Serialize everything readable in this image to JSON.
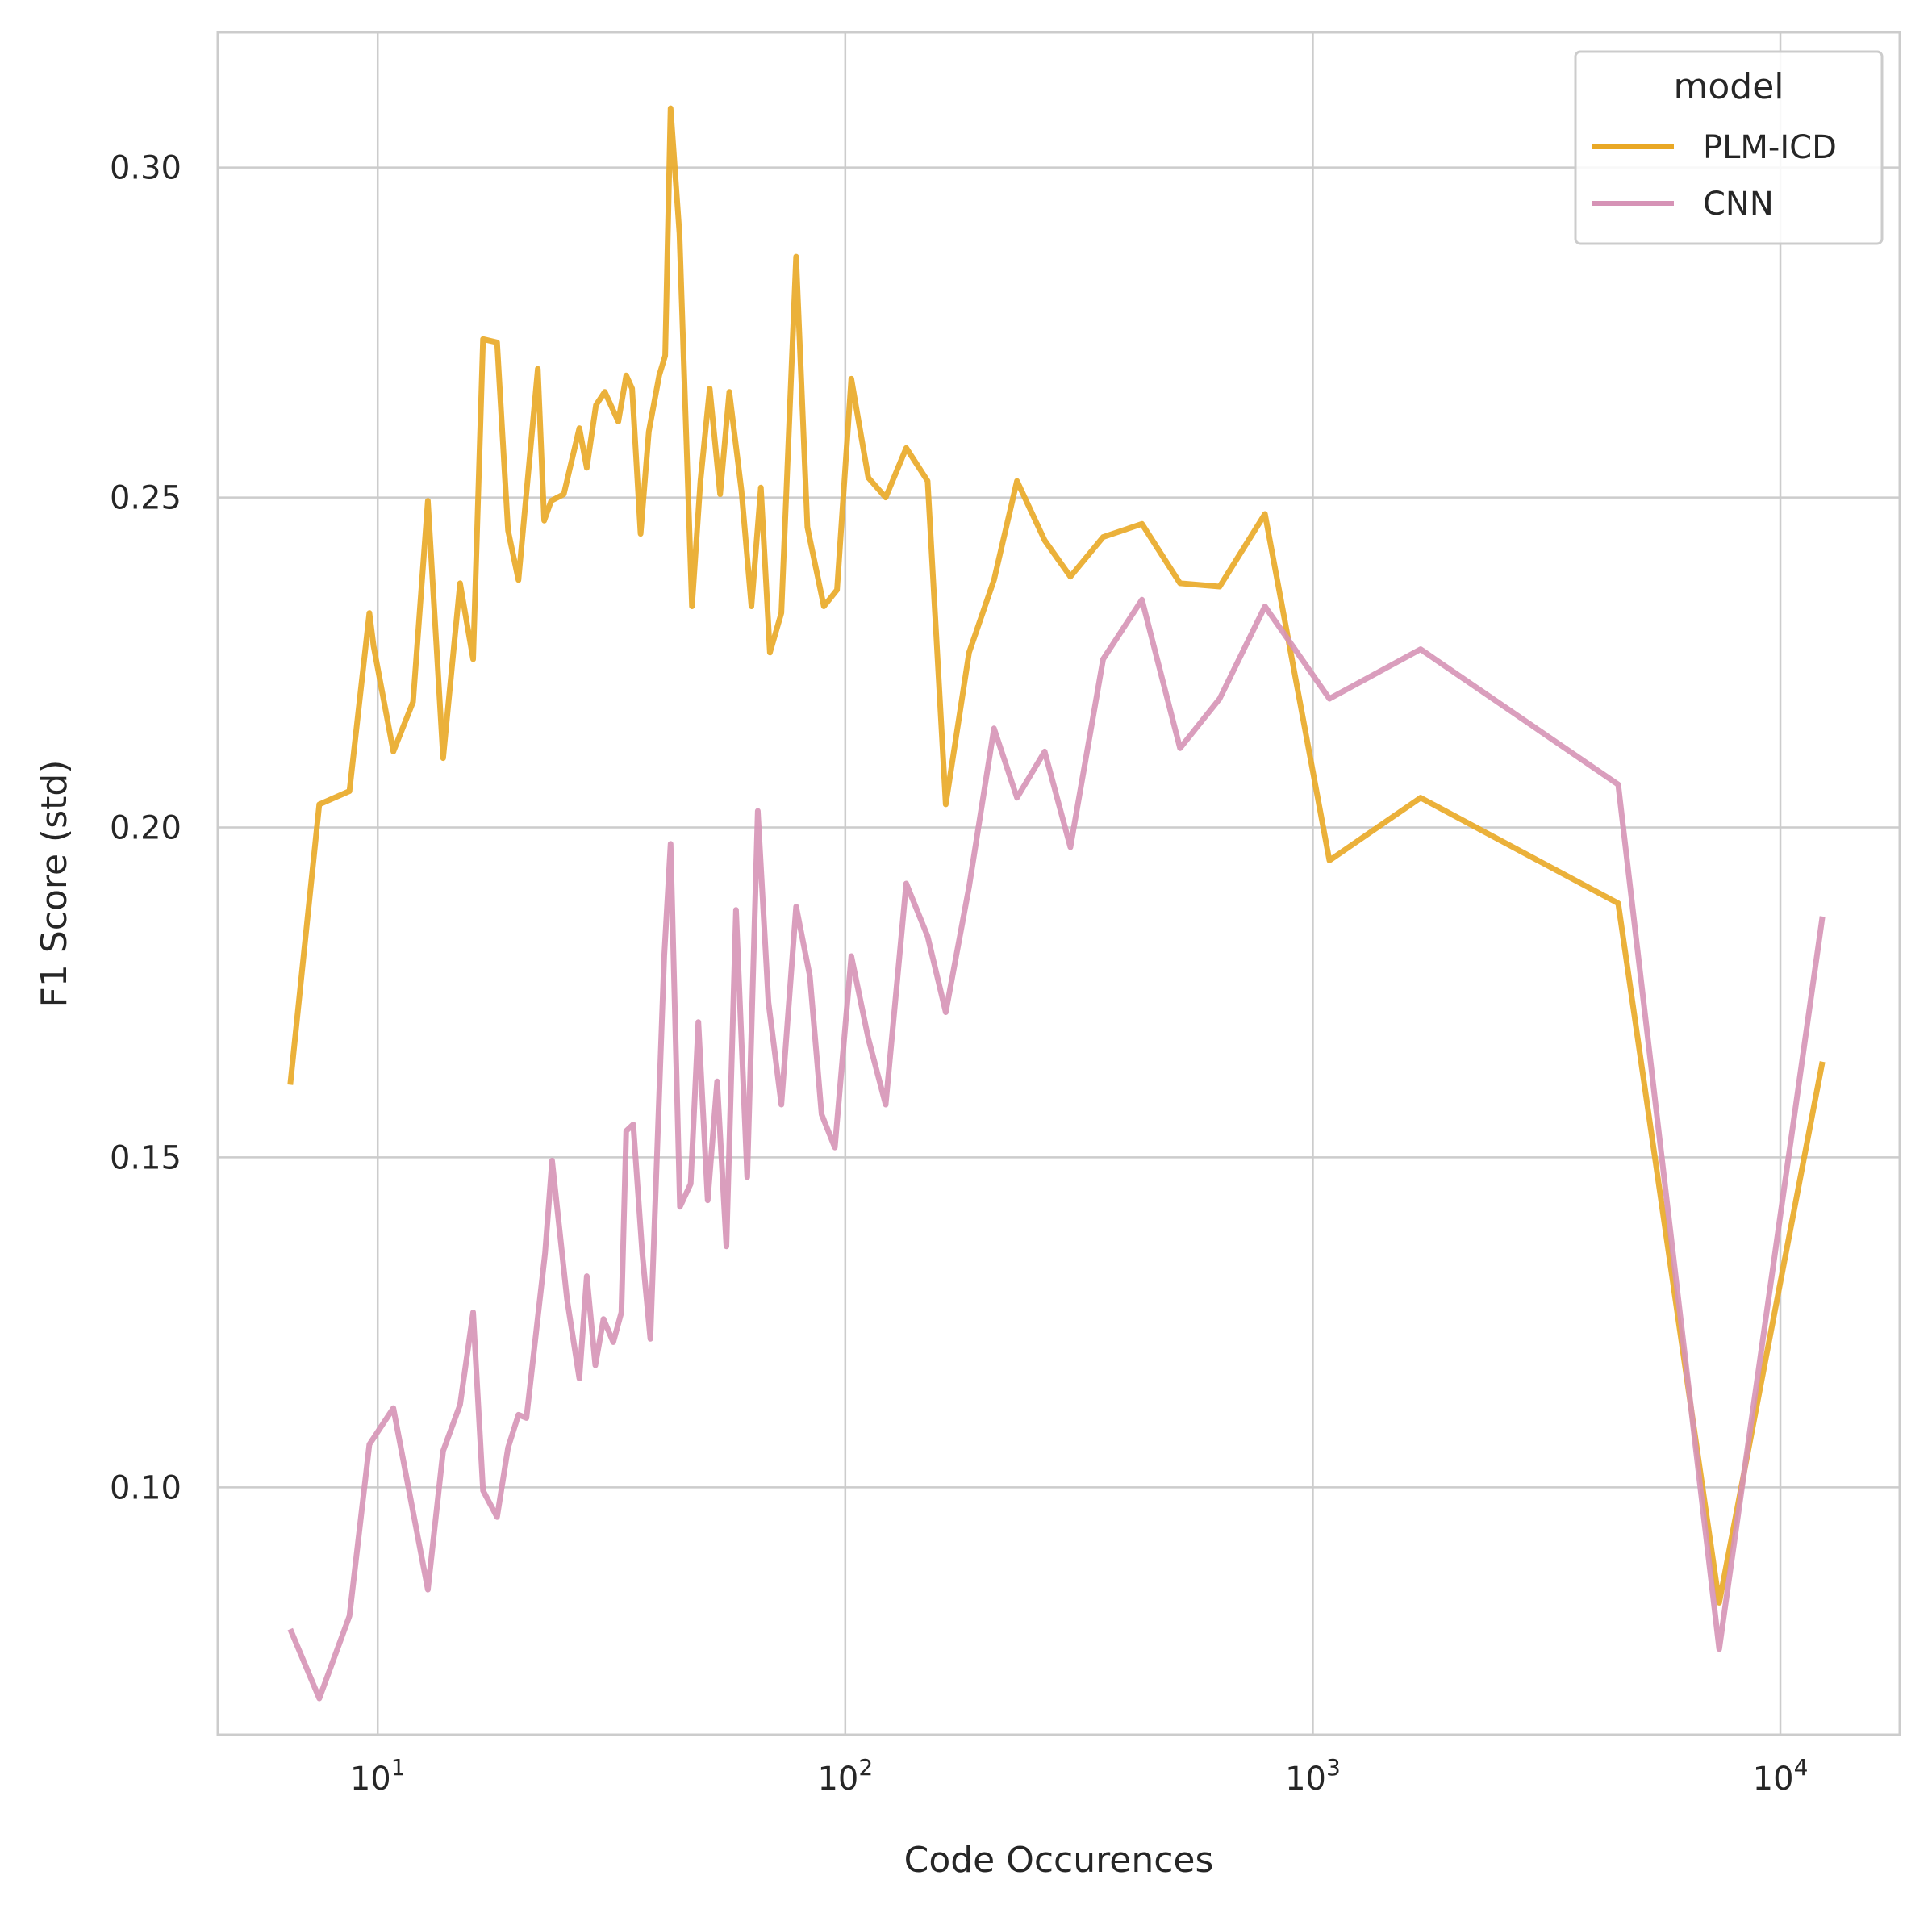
{
  "chart_data": {
    "type": "line",
    "xlabel": "Code Occurences",
    "ylabel": "F1 Score (std)",
    "xscale": "log",
    "xlim": [
      4.55,
      18000
    ],
    "ylim": [
      0.0625,
      0.3205
    ],
    "grid": true,
    "x_ticks": [
      {
        "value": 10,
        "base": "10",
        "exp": "1"
      },
      {
        "value": 100,
        "base": "10",
        "exp": "2"
      },
      {
        "value": 1000,
        "base": "10",
        "exp": "3"
      },
      {
        "value": 10000,
        "base": "10",
        "exp": "4"
      }
    ],
    "y_ticks": [
      {
        "value": 0.1,
        "label": "0.10"
      },
      {
        "value": 0.15,
        "label": "0.15"
      },
      {
        "value": 0.2,
        "label": "0.20"
      },
      {
        "value": 0.25,
        "label": "0.25"
      },
      {
        "value": 0.3,
        "label": "0.30"
      }
    ],
    "legend": {
      "title": "model",
      "position": "top-right"
    },
    "series": [
      {
        "name": "PLM-ICD",
        "color": "#E9A825",
        "points": [
          [
            6.5,
            0.161
          ],
          [
            7.5,
            0.2035
          ],
          [
            8.7,
            0.2055
          ],
          [
            9.6,
            0.2325
          ],
          [
            9.8,
            0.2275
          ],
          [
            10.8,
            0.2115
          ],
          [
            11.9,
            0.219
          ],
          [
            12.8,
            0.2495
          ],
          [
            13.8,
            0.2105
          ],
          [
            15.0,
            0.237
          ],
          [
            16.0,
            0.2255
          ],
          [
            16.8,
            0.274
          ],
          [
            18.0,
            0.2735
          ],
          [
            19.0,
            0.245
          ],
          [
            20.0,
            0.2375
          ],
          [
            22.0,
            0.2695
          ],
          [
            22.7,
            0.2465
          ],
          [
            23.5,
            0.2495
          ],
          [
            25.0,
            0.2505
          ],
          [
            27.0,
            0.2605
          ],
          [
            28.0,
            0.2545
          ],
          [
            29.3,
            0.264
          ],
          [
            30.6,
            0.266
          ],
          [
            32.7,
            0.2615
          ],
          [
            34.0,
            0.2685
          ],
          [
            35.0,
            0.2665
          ],
          [
            36.5,
            0.2445
          ],
          [
            38.0,
            0.26
          ],
          [
            40.0,
            0.2685
          ],
          [
            41.2,
            0.2715
          ],
          [
            42.3,
            0.309
          ],
          [
            44.2,
            0.29
          ],
          [
            47.0,
            0.2335
          ],
          [
            49.0,
            0.2525
          ],
          [
            51.3,
            0.2665
          ],
          [
            54.0,
            0.2505
          ],
          [
            56.5,
            0.266
          ],
          [
            60.0,
            0.251
          ],
          [
            63.0,
            0.2335
          ],
          [
            66.0,
            0.2515
          ],
          [
            69.0,
            0.2265
          ],
          [
            73.0,
            0.2325
          ],
          [
            78.5,
            0.2865
          ],
          [
            83.0,
            0.2455
          ],
          [
            90.0,
            0.2335
          ],
          [
            96.0,
            0.236
          ],
          [
            103.0,
            0.268
          ],
          [
            112.0,
            0.253
          ],
          [
            122.0,
            0.25
          ],
          [
            135.0,
            0.2575
          ],
          [
            150.0,
            0.2525
          ],
          [
            164.0,
            0.2035
          ],
          [
            184.0,
            0.2265
          ],
          [
            208.0,
            0.2375
          ],
          [
            233.0,
            0.2525
          ],
          [
            267.0,
            0.2435
          ],
          [
            303.0,
            0.238
          ],
          [
            356.0,
            0.244
          ],
          [
            431.0,
            0.246
          ],
          [
            520.0,
            0.237
          ],
          [
            632.0,
            0.2365
          ],
          [
            790.0,
            0.2475
          ],
          [
            1085.0,
            0.195
          ],
          [
            1700.0,
            0.2045
          ],
          [
            4500.0,
            0.1885
          ],
          [
            7400.0,
            0.0825
          ],
          [
            12300.0,
            0.1645
          ]
        ]
      },
      {
        "name": "CNN",
        "color": "#D693B6",
        "points": [
          [
            6.5,
            0.0785
          ],
          [
            7.5,
            0.068
          ],
          [
            8.7,
            0.0805
          ],
          [
            9.6,
            0.1065
          ],
          [
            10.8,
            0.112
          ],
          [
            12.8,
            0.0845
          ],
          [
            13.8,
            0.1055
          ],
          [
            15.0,
            0.1125
          ],
          [
            16.0,
            0.1265
          ],
          [
            16.8,
            0.0995
          ],
          [
            18.0,
            0.0955
          ],
          [
            19.0,
            0.106
          ],
          [
            20.0,
            0.111
          ],
          [
            20.8,
            0.1105
          ],
          [
            22.8,
            0.1355
          ],
          [
            23.6,
            0.1495
          ],
          [
            25.4,
            0.1285
          ],
          [
            27.0,
            0.1165
          ],
          [
            28.0,
            0.132
          ],
          [
            29.2,
            0.1185
          ],
          [
            30.4,
            0.1255
          ],
          [
            31.9,
            0.122
          ],
          [
            33.2,
            0.1265
          ],
          [
            34.0,
            0.154
          ],
          [
            35.2,
            0.155
          ],
          [
            36.8,
            0.1355
          ],
          [
            38.3,
            0.1225
          ],
          [
            41.0,
            0.1805
          ],
          [
            42.3,
            0.1975
          ],
          [
            44.3,
            0.1425
          ],
          [
            46.7,
            0.146
          ],
          [
            48.5,
            0.1705
          ],
          [
            50.8,
            0.1435
          ],
          [
            53.2,
            0.1615
          ],
          [
            55.7,
            0.1365
          ],
          [
            58.4,
            0.1875
          ],
          [
            61.7,
            0.147
          ],
          [
            65.0,
            0.2025
          ],
          [
            68.5,
            0.1735
          ],
          [
            73.0,
            0.158
          ],
          [
            78.5,
            0.188
          ],
          [
            84.0,
            0.1775
          ],
          [
            89.0,
            0.1565
          ],
          [
            95.0,
            0.1515
          ],
          [
            103.0,
            0.1805
          ],
          [
            112.0,
            0.168
          ],
          [
            122.0,
            0.158
          ],
          [
            135.0,
            0.1915
          ],
          [
            150.0,
            0.1835
          ],
          [
            164.0,
            0.172
          ],
          [
            184.0,
            0.191
          ],
          [
            208.0,
            0.215
          ],
          [
            233.0,
            0.2045
          ],
          [
            267.0,
            0.2115
          ],
          [
            303.0,
            0.197
          ],
          [
            356.0,
            0.2255
          ],
          [
            431.0,
            0.2345
          ],
          [
            520.0,
            0.212
          ],
          [
            632.0,
            0.2195
          ],
          [
            790.0,
            0.2335
          ],
          [
            1085.0,
            0.2195
          ],
          [
            1700.0,
            0.227
          ],
          [
            4500.0,
            0.2065
          ],
          [
            7400.0,
            0.0755
          ],
          [
            12300.0,
            0.1865
          ]
        ]
      }
    ]
  }
}
